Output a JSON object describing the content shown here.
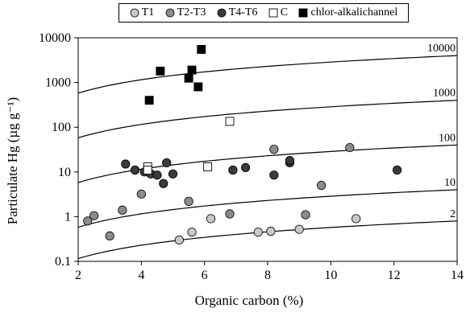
{
  "chart_data": {
    "type": "scatter",
    "xlabel": "Organic carbon (%)",
    "ylabel": "Particulate Hg (µg g⁻¹)",
    "xlim": [
      2,
      14
    ],
    "ylim": [
      0.1,
      10000
    ],
    "yscale": "log",
    "x_ticks": [
      "2",
      "4",
      "6",
      "8",
      "10",
      "12",
      "14"
    ],
    "y_ticks": [
      "0.1",
      "1",
      "10",
      "100",
      "1000",
      "10000"
    ],
    "legend_position": "top",
    "series": [
      {
        "name": "T1",
        "color": "#c8c8c8",
        "marker": "circle",
        "points": [
          [
            5.2,
            0.3
          ],
          [
            5.6,
            0.45
          ],
          [
            6.2,
            0.9
          ],
          [
            7.7,
            0.45
          ],
          [
            8.1,
            0.47
          ],
          [
            9.0,
            0.52
          ],
          [
            10.8,
            0.9
          ]
        ]
      },
      {
        "name": "T2-T3",
        "color": "#8c8c8c",
        "marker": "circle",
        "points": [
          [
            2.3,
            0.8
          ],
          [
            2.5,
            1.05
          ],
          [
            3.0,
            0.37
          ],
          [
            3.4,
            1.4
          ],
          [
            4.0,
            3.2
          ],
          [
            5.5,
            2.2
          ],
          [
            6.8,
            1.15
          ],
          [
            8.2,
            32
          ],
          [
            9.2,
            1.1
          ],
          [
            9.7,
            5
          ],
          [
            10.6,
            35
          ]
        ]
      },
      {
        "name": "T4-T6",
        "color": "#3a3a3a",
        "marker": "circle",
        "points": [
          [
            3.5,
            15
          ],
          [
            3.8,
            11
          ],
          [
            4.1,
            10
          ],
          [
            4.3,
            9
          ],
          [
            4.5,
            8.5
          ],
          [
            4.7,
            5.5
          ],
          [
            4.8,
            16
          ],
          [
            5.0,
            9
          ],
          [
            6.9,
            11
          ],
          [
            7.3,
            12.5
          ],
          [
            8.2,
            8.5
          ],
          [
            8.7,
            16
          ],
          [
            8.7,
            18
          ],
          [
            12.1,
            11
          ]
        ]
      },
      {
        "name": "C",
        "color": "#ffffff",
        "marker": "square",
        "points": [
          [
            4.2,
            13
          ],
          [
            4.2,
            11
          ],
          [
            6.1,
            13
          ],
          [
            6.8,
            135
          ]
        ]
      },
      {
        "name": "chlor-alkalichannel",
        "color": "#000000",
        "marker": "square",
        "points": [
          [
            4.25,
            400
          ],
          [
            4.6,
            1800
          ],
          [
            5.5,
            1250
          ],
          [
            5.6,
            1900
          ],
          [
            5.8,
            800
          ],
          [
            5.9,
            5500
          ]
        ]
      }
    ],
    "reference_curves": [
      {
        "label": "2",
        "y_at_x2": 0.115,
        "y_at_x14": 0.8
      },
      {
        "label": "10",
        "y_at_x2": 0.58,
        "y_at_x14": 4.0
      },
      {
        "label": "100",
        "y_at_x2": 5.8,
        "y_at_x14": 40
      },
      {
        "label": "1000",
        "y_at_x2": 58,
        "y_at_x14": 400
      },
      {
        "label": "10000",
        "y_at_x2": 580,
        "y_at_x14": 4000
      }
    ]
  }
}
